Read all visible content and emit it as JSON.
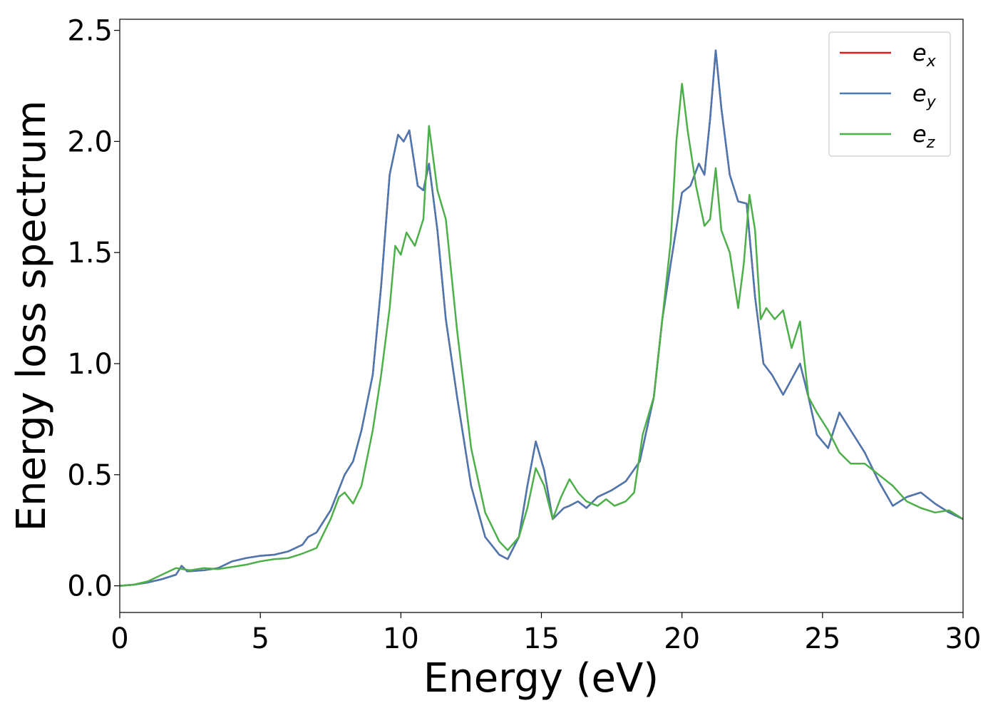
{
  "chart_data": {
    "type": "line",
    "title": "",
    "xlabel": "Energy (eV)",
    "ylabel": "Energy loss spectrum",
    "xlim": [
      0,
      30
    ],
    "ylim": [
      -0.12,
      2.55
    ],
    "xticks": [
      0,
      5,
      10,
      15,
      20,
      25,
      30
    ],
    "xtick_labels": [
      "0",
      "5",
      "10",
      "15",
      "20",
      "25",
      "30"
    ],
    "yticks": [
      0.0,
      0.5,
      1.0,
      1.5,
      2.0,
      2.5
    ],
    "ytick_labels": [
      "0.0",
      "0.5",
      "1.0",
      "1.5",
      "2.0",
      "2.5"
    ],
    "grid": false,
    "legend_position": "top-right",
    "series": [
      {
        "name": "e_x",
        "label_base": "e",
        "label_sub": "x",
        "color": "#e41a1c",
        "points": [
          [
            0,
            0
          ],
          [
            0.5,
            0.005
          ],
          [
            1,
            0.015
          ],
          [
            1.5,
            0.03
          ],
          [
            2,
            0.05
          ],
          [
            2.2,
            0.09
          ],
          [
            2.4,
            0.065
          ],
          [
            3,
            0.07
          ],
          [
            3.5,
            0.08
          ],
          [
            4,
            0.11
          ],
          [
            4.5,
            0.125
          ],
          [
            5,
            0.135
          ],
          [
            5.5,
            0.14
          ],
          [
            6,
            0.155
          ],
          [
            6.5,
            0.185
          ],
          [
            6.7,
            0.22
          ],
          [
            7,
            0.24
          ],
          [
            7.5,
            0.34
          ],
          [
            8,
            0.5
          ],
          [
            8.3,
            0.56
          ],
          [
            8.6,
            0.7
          ],
          [
            9,
            0.95
          ],
          [
            9.3,
            1.35
          ],
          [
            9.6,
            1.85
          ],
          [
            9.9,
            2.03
          ],
          [
            10.1,
            2.0
          ],
          [
            10.3,
            2.05
          ],
          [
            10.6,
            1.8
          ],
          [
            10.8,
            1.78
          ],
          [
            11,
            1.9
          ],
          [
            11.3,
            1.6
          ],
          [
            11.6,
            1.2
          ],
          [
            12,
            0.85
          ],
          [
            12.5,
            0.45
          ],
          [
            13,
            0.22
          ],
          [
            13.5,
            0.14
          ],
          [
            13.8,
            0.12
          ],
          [
            14.2,
            0.22
          ],
          [
            14.5,
            0.45
          ],
          [
            14.8,
            0.65
          ],
          [
            15.1,
            0.52
          ],
          [
            15.4,
            0.3
          ],
          [
            15.8,
            0.35
          ],
          [
            16,
            0.36
          ],
          [
            16.3,
            0.38
          ],
          [
            16.6,
            0.35
          ],
          [
            17,
            0.4
          ],
          [
            17.5,
            0.43
          ],
          [
            18,
            0.47
          ],
          [
            18.5,
            0.56
          ],
          [
            19,
            0.85
          ],
          [
            19.3,
            1.2
          ],
          [
            19.6,
            1.45
          ],
          [
            20,
            1.77
          ],
          [
            20.3,
            1.8
          ],
          [
            20.6,
            1.9
          ],
          [
            20.8,
            1.85
          ],
          [
            21,
            2.1
          ],
          [
            21.2,
            2.41
          ],
          [
            21.4,
            2.15
          ],
          [
            21.7,
            1.85
          ],
          [
            22,
            1.73
          ],
          [
            22.3,
            1.72
          ],
          [
            22.6,
            1.3
          ],
          [
            22.9,
            1.0
          ],
          [
            23.2,
            0.95
          ],
          [
            23.6,
            0.86
          ],
          [
            23.9,
            0.93
          ],
          [
            24.2,
            1.0
          ],
          [
            24.5,
            0.85
          ],
          [
            24.8,
            0.68
          ],
          [
            25.2,
            0.62
          ],
          [
            25.6,
            0.78
          ],
          [
            26,
            0.7
          ],
          [
            26.5,
            0.6
          ],
          [
            27,
            0.47
          ],
          [
            27.5,
            0.36
          ],
          [
            28,
            0.4
          ],
          [
            28.5,
            0.42
          ],
          [
            29,
            0.37
          ],
          [
            29.5,
            0.33
          ],
          [
            30,
            0.3
          ]
        ]
      },
      {
        "name": "e_y",
        "label_base": "e",
        "label_sub": "y",
        "color": "#4a78b0",
        "points": [
          [
            0,
            0
          ],
          [
            0.5,
            0.005
          ],
          [
            1,
            0.015
          ],
          [
            1.5,
            0.03
          ],
          [
            2,
            0.05
          ],
          [
            2.2,
            0.09
          ],
          [
            2.4,
            0.065
          ],
          [
            3,
            0.07
          ],
          [
            3.5,
            0.08
          ],
          [
            4,
            0.11
          ],
          [
            4.5,
            0.125
          ],
          [
            5,
            0.135
          ],
          [
            5.5,
            0.14
          ],
          [
            6,
            0.155
          ],
          [
            6.5,
            0.185
          ],
          [
            6.7,
            0.22
          ],
          [
            7,
            0.24
          ],
          [
            7.5,
            0.34
          ],
          [
            8,
            0.5
          ],
          [
            8.3,
            0.56
          ],
          [
            8.6,
            0.7
          ],
          [
            9,
            0.95
          ],
          [
            9.3,
            1.35
          ],
          [
            9.6,
            1.85
          ],
          [
            9.9,
            2.03
          ],
          [
            10.1,
            2.0
          ],
          [
            10.3,
            2.05
          ],
          [
            10.6,
            1.8
          ],
          [
            10.8,
            1.78
          ],
          [
            11,
            1.9
          ],
          [
            11.3,
            1.6
          ],
          [
            11.6,
            1.2
          ],
          [
            12,
            0.85
          ],
          [
            12.5,
            0.45
          ],
          [
            13,
            0.22
          ],
          [
            13.5,
            0.14
          ],
          [
            13.8,
            0.12
          ],
          [
            14.2,
            0.22
          ],
          [
            14.5,
            0.45
          ],
          [
            14.8,
            0.65
          ],
          [
            15.1,
            0.52
          ],
          [
            15.4,
            0.3
          ],
          [
            15.8,
            0.35
          ],
          [
            16,
            0.36
          ],
          [
            16.3,
            0.38
          ],
          [
            16.6,
            0.35
          ],
          [
            17,
            0.4
          ],
          [
            17.5,
            0.43
          ],
          [
            18,
            0.47
          ],
          [
            18.5,
            0.56
          ],
          [
            19,
            0.85
          ],
          [
            19.3,
            1.2
          ],
          [
            19.6,
            1.45
          ],
          [
            20,
            1.77
          ],
          [
            20.3,
            1.8
          ],
          [
            20.6,
            1.9
          ],
          [
            20.8,
            1.85
          ],
          [
            21,
            2.1
          ],
          [
            21.2,
            2.41
          ],
          [
            21.4,
            2.15
          ],
          [
            21.7,
            1.85
          ],
          [
            22,
            1.73
          ],
          [
            22.3,
            1.72
          ],
          [
            22.6,
            1.3
          ],
          [
            22.9,
            1.0
          ],
          [
            23.2,
            0.95
          ],
          [
            23.6,
            0.86
          ],
          [
            23.9,
            0.93
          ],
          [
            24.2,
            1.0
          ],
          [
            24.5,
            0.85
          ],
          [
            24.8,
            0.68
          ],
          [
            25.2,
            0.62
          ],
          [
            25.6,
            0.78
          ],
          [
            26,
            0.7
          ],
          [
            26.5,
            0.6
          ],
          [
            27,
            0.47
          ],
          [
            27.5,
            0.36
          ],
          [
            28,
            0.4
          ],
          [
            28.5,
            0.42
          ],
          [
            29,
            0.37
          ],
          [
            29.5,
            0.33
          ],
          [
            30,
            0.3
          ]
        ]
      },
      {
        "name": "e_z",
        "label_base": "e",
        "label_sub": "z",
        "color": "#4daf4a",
        "points": [
          [
            0,
            0
          ],
          [
            0.5,
            0.005
          ],
          [
            1,
            0.02
          ],
          [
            1.5,
            0.05
          ],
          [
            2,
            0.08
          ],
          [
            2.5,
            0.07
          ],
          [
            3,
            0.08
          ],
          [
            3.5,
            0.075
          ],
          [
            4,
            0.085
          ],
          [
            4.5,
            0.095
          ],
          [
            5,
            0.11
          ],
          [
            5.5,
            0.12
          ],
          [
            6,
            0.125
          ],
          [
            6.5,
            0.145
          ],
          [
            7,
            0.17
          ],
          [
            7.5,
            0.3
          ],
          [
            7.8,
            0.4
          ],
          [
            8,
            0.42
          ],
          [
            8.3,
            0.37
          ],
          [
            8.6,
            0.45
          ],
          [
            9,
            0.7
          ],
          [
            9.3,
            0.95
          ],
          [
            9.6,
            1.25
          ],
          [
            9.8,
            1.53
          ],
          [
            10,
            1.49
          ],
          [
            10.2,
            1.59
          ],
          [
            10.5,
            1.53
          ],
          [
            10.8,
            1.65
          ],
          [
            11,
            2.07
          ],
          [
            11.3,
            1.78
          ],
          [
            11.6,
            1.65
          ],
          [
            12,
            1.15
          ],
          [
            12.5,
            0.62
          ],
          [
            13,
            0.33
          ],
          [
            13.5,
            0.2
          ],
          [
            13.8,
            0.16
          ],
          [
            14.2,
            0.22
          ],
          [
            14.5,
            0.35
          ],
          [
            14.8,
            0.53
          ],
          [
            15.1,
            0.45
          ],
          [
            15.4,
            0.3
          ],
          [
            15.7,
            0.4
          ],
          [
            16,
            0.48
          ],
          [
            16.3,
            0.42
          ],
          [
            16.6,
            0.38
          ],
          [
            17,
            0.36
          ],
          [
            17.3,
            0.39
          ],
          [
            17.6,
            0.36
          ],
          [
            18,
            0.38
          ],
          [
            18.3,
            0.42
          ],
          [
            18.6,
            0.68
          ],
          [
            19,
            0.85
          ],
          [
            19.3,
            1.2
          ],
          [
            19.6,
            1.55
          ],
          [
            19.8,
            2.0
          ],
          [
            20,
            2.26
          ],
          [
            20.2,
            2.05
          ],
          [
            20.5,
            1.8
          ],
          [
            20.8,
            1.62
          ],
          [
            21,
            1.65
          ],
          [
            21.2,
            1.88
          ],
          [
            21.4,
            1.6
          ],
          [
            21.7,
            1.5
          ],
          [
            22,
            1.25
          ],
          [
            22.2,
            1.45
          ],
          [
            22.4,
            1.76
          ],
          [
            22.6,
            1.6
          ],
          [
            22.8,
            1.2
          ],
          [
            23,
            1.25
          ],
          [
            23.3,
            1.2
          ],
          [
            23.6,
            1.24
          ],
          [
            23.9,
            1.07
          ],
          [
            24.2,
            1.19
          ],
          [
            24.5,
            0.85
          ],
          [
            24.8,
            0.78
          ],
          [
            25.2,
            0.7
          ],
          [
            25.6,
            0.6
          ],
          [
            26,
            0.55
          ],
          [
            26.5,
            0.55
          ],
          [
            27,
            0.5
          ],
          [
            27.5,
            0.45
          ],
          [
            28,
            0.38
          ],
          [
            28.5,
            0.35
          ],
          [
            29,
            0.33
          ],
          [
            29.5,
            0.34
          ],
          [
            30,
            0.3
          ]
        ]
      }
    ]
  }
}
